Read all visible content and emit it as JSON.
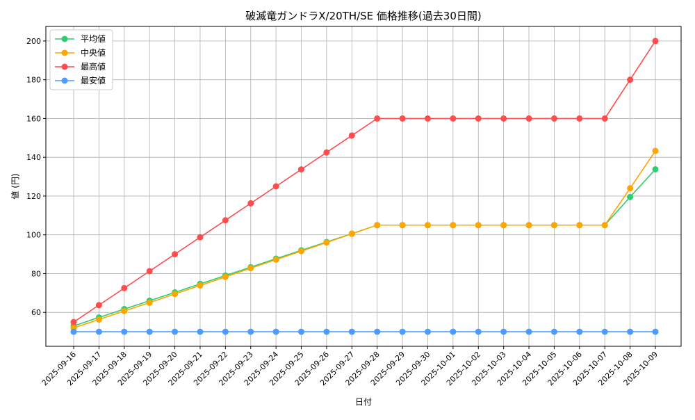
{
  "chart_data": {
    "type": "line",
    "title": "破滅竜ガンドラX/20TH/SE 価格推移(過去30日間)",
    "xlabel": "日付",
    "ylabel": "値 (円)",
    "ylim": [
      42.5,
      207.5
    ],
    "yticks": [
      60,
      80,
      100,
      120,
      140,
      160,
      180,
      200
    ],
    "grid": true,
    "legend_position": "top-left",
    "categories": [
      "2025-09-16",
      "2025-09-17",
      "2025-09-18",
      "2025-09-19",
      "2025-09-20",
      "2025-09-21",
      "2025-09-22",
      "2025-09-23",
      "2025-09-24",
      "2025-09-25",
      "2025-09-26",
      "2025-09-27",
      "2025-09-28",
      "2025-09-29",
      "2025-09-30",
      "2025-10-01",
      "2025-10-02",
      "2025-10-03",
      "2025-10-04",
      "2025-10-05",
      "2025-10-06",
      "2025-10-07",
      "2025-10-08",
      "2025-10-09"
    ],
    "series": [
      {
        "name": "平均値",
        "color": "#2ecc71",
        "values": [
          53,
          57.4,
          61.7,
          66,
          70.3,
          74.7,
          79,
          83.3,
          87.7,
          92,
          96.3,
          100.6,
          105,
          105,
          105,
          105,
          105,
          105,
          105,
          105,
          105,
          105,
          119.5,
          133.8
        ]
      },
      {
        "name": "中央値",
        "color": "#ffa500",
        "values": [
          52,
          56.3,
          60.7,
          65,
          69.5,
          73.9,
          78.3,
          82.8,
          87.2,
          91.6,
          96,
          100.5,
          105,
          105,
          105,
          105,
          105,
          105,
          105,
          105,
          105,
          105,
          124,
          143.3
        ]
      },
      {
        "name": "最高値",
        "color": "#ff4c4c",
        "values": [
          55,
          63.75,
          72.5,
          81.25,
          90,
          98.75,
          107.5,
          116.25,
          125,
          133.75,
          142.5,
          151.25,
          160,
          160,
          160,
          160,
          160,
          160,
          160,
          160,
          160,
          160,
          180,
          200
        ]
      },
      {
        "name": "最安値",
        "color": "#4c9bff",
        "values": [
          50,
          50,
          50,
          50,
          50,
          50,
          50,
          50,
          50,
          50,
          50,
          50,
          50,
          50,
          50,
          50,
          50,
          50,
          50,
          50,
          50,
          50,
          50,
          50
        ]
      }
    ]
  }
}
